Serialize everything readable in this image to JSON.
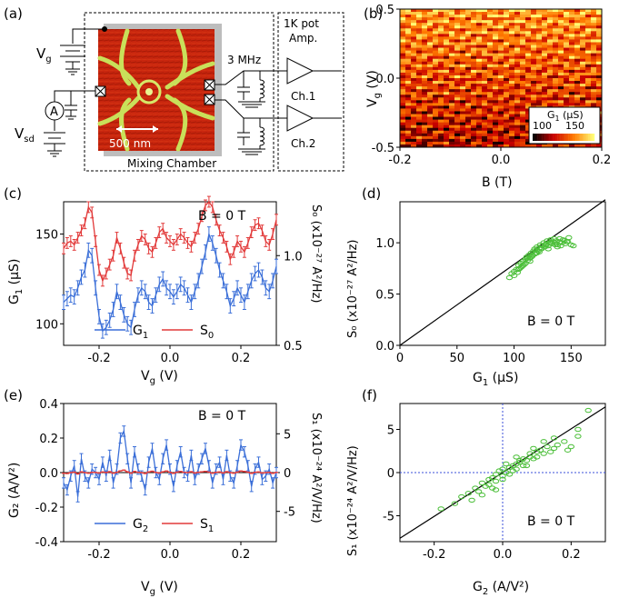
{
  "panel_labels": {
    "a": "(a)",
    "b": "(b)",
    "c": "(c)",
    "d": "(d)",
    "e": "(e)",
    "f": "(f)"
  },
  "panel_a": {
    "vg_label": "V",
    "vg_sub": "g",
    "vsd_label": "V",
    "vsd_sub": "sd",
    "ammeter": "A",
    "scale_bar": "500 nm",
    "mixing_chamber": "Mixing Chamber",
    "freq": "3 MHz",
    "pot_line1": "1K pot",
    "pot_line2": "Amp.",
    "ch1": "Ch.1",
    "ch2": "Ch.2"
  },
  "chart_data": [
    {
      "id": "b",
      "type": "heatmap",
      "xlabel": "B (T)",
      "ylabel_main": "V",
      "ylabel_sub": "g",
      "ylabel_unit": " (V)",
      "xlim": [
        -0.2,
        0.2
      ],
      "ylim": [
        -0.5,
        0.5
      ],
      "xticks": [
        "-0.2",
        "0.0",
        "0.2"
      ],
      "yticks": [
        "0.5",
        "0.0",
        "-0.5"
      ],
      "colorbar": {
        "label_main": "G",
        "label_sub": "1",
        "label_unit": " (µS)",
        "ticks": [
          "100",
          "150"
        ],
        "range": [
          90,
          160
        ]
      }
    },
    {
      "id": "c",
      "type": "line",
      "annotation": "B = 0 T",
      "xlabel_main": "V",
      "xlabel_sub": "g",
      "xlabel_unit": " (V)",
      "ylabel_main": "G",
      "ylabel_sub": "1",
      "ylabel_unit": " (µS)",
      "y2label": "S₀ (x10⁻²⁷ A²/Hz)",
      "xlim": [
        -0.3,
        0.3
      ],
      "ylim": [
        88,
        168
      ],
      "y2lim": [
        0.5,
        1.3
      ],
      "xticks": [
        "-0.2",
        "0.0",
        "0.2"
      ],
      "yticks": [
        "100",
        "150"
      ],
      "y2ticks": [
        "0.5",
        "1.0"
      ],
      "legend": [
        {
          "name_main": "G",
          "name_sub": "1",
          "color": "#3b6fd8"
        },
        {
          "name_main": "S",
          "name_sub": "0",
          "color": "#e23a3a"
        }
      ],
      "x": [
        -0.3,
        -0.29,
        -0.28,
        -0.27,
        -0.26,
        -0.25,
        -0.24,
        -0.23,
        -0.22,
        -0.21,
        -0.2,
        -0.19,
        -0.18,
        -0.17,
        -0.16,
        -0.15,
        -0.14,
        -0.13,
        -0.12,
        -0.11,
        -0.1,
        -0.09,
        -0.08,
        -0.07,
        -0.06,
        -0.05,
        -0.04,
        -0.03,
        -0.02,
        -0.01,
        0.0,
        0.01,
        0.02,
        0.03,
        0.04,
        0.05,
        0.06,
        0.07,
        0.08,
        0.09,
        0.1,
        0.11,
        0.12,
        0.13,
        0.14,
        0.15,
        0.16,
        0.17,
        0.18,
        0.19,
        0.2,
        0.21,
        0.22,
        0.23,
        0.24,
        0.25,
        0.26,
        0.27,
        0.28,
        0.29,
        0.3
      ],
      "series": [
        {
          "name": "G1",
          "color": "#3b6fd8",
          "values": [
            112,
            114,
            116,
            115,
            120,
            126,
            130,
            141,
            138,
            120,
            104,
            96,
            98,
            102,
            108,
            118,
            112,
            105,
            100,
            98,
            108,
            116,
            120,
            118,
            112,
            110,
            116,
            122,
            125,
            120,
            118,
            115,
            118,
            122,
            120,
            116,
            112,
            118,
            124,
            132,
            140,
            150,
            145,
            138,
            130,
            124,
            118,
            110,
            114,
            120,
            116,
            112,
            118,
            124,
            128,
            130,
            126,
            120,
            118,
            124,
            132
          ],
          "err": 4
        },
        {
          "name": "S0",
          "color": "#e23a3a",
          "values": [
            1.04,
            1.07,
            1.08,
            1.06,
            1.1,
            1.14,
            1.18,
            1.27,
            1.24,
            1.08,
            0.92,
            0.86,
            0.9,
            0.95,
            1.0,
            1.1,
            1.04,
            0.96,
            0.9,
            0.89,
            1.0,
            1.06,
            1.11,
            1.09,
            1.04,
            1.02,
            1.07,
            1.13,
            1.15,
            1.1,
            1.08,
            1.06,
            1.09,
            1.12,
            1.1,
            1.07,
            1.05,
            1.1,
            1.15,
            1.22,
            1.28,
            1.3,
            1.27,
            1.2,
            1.14,
            1.1,
            1.05,
            0.98,
            1.02,
            1.08,
            1.05,
            1.02,
            1.07,
            1.13,
            1.17,
            1.18,
            1.14,
            1.08,
            1.06,
            1.12,
            1.2
          ],
          "err": 0.03
        }
      ]
    },
    {
      "id": "d",
      "type": "scatter",
      "annotation": "B = 0 T",
      "xlabel_main": "G",
      "xlabel_sub": "1",
      "xlabel_unit": " (µS)",
      "ylabel": "S₀ (x10⁻²⁷ A²/Hz)",
      "xlim": [
        0,
        180
      ],
      "ylim": [
        0,
        1.4
      ],
      "xticks": [
        "0",
        "50",
        "100",
        "150"
      ],
      "yticks": [
        "0.0",
        "0.5",
        "1.0"
      ],
      "fit_line": {
        "x": [
          0,
          180
        ],
        "y": [
          0,
          1.42
        ]
      },
      "points_x": [
        96,
        98,
        100,
        102,
        103,
        104,
        105,
        106,
        107,
        108,
        109,
        110,
        110,
        111,
        112,
        113,
        114,
        115,
        115,
        116,
        117,
        118,
        118,
        119,
        120,
        120,
        121,
        122,
        123,
        124,
        125,
        126,
        127,
        128,
        129,
        130,
        131,
        132,
        133,
        134,
        135,
        136,
        137,
        138,
        140,
        141,
        142,
        143,
        145,
        147,
        150,
        152,
        100,
        104,
        108,
        112,
        116,
        120,
        124,
        128,
        132,
        136,
        140,
        144,
        148,
        106,
        114,
        122,
        130,
        138,
        146
      ],
      "points_y": [
        0.66,
        0.7,
        0.72,
        0.74,
        0.71,
        0.78,
        0.75,
        0.8,
        0.77,
        0.82,
        0.79,
        0.84,
        0.8,
        0.86,
        0.83,
        0.88,
        0.85,
        0.9,
        0.86,
        0.88,
        0.92,
        0.89,
        0.94,
        0.9,
        0.93,
        0.96,
        0.92,
        0.95,
        0.98,
        0.94,
        0.97,
        1.0,
        0.96,
        0.99,
        1.02,
        0.97,
        1.0,
        1.03,
        0.99,
        1.01,
        1.04,
        1.0,
        1.02,
        0.98,
        1.01,
        0.97,
        1.0,
        1.03,
        0.99,
        1.01,
        0.98,
        0.97,
        0.68,
        0.74,
        0.78,
        0.85,
        0.87,
        0.9,
        0.95,
        0.98,
        1.0,
        0.98,
        1.04,
        1.02,
        1.05,
        0.76,
        0.82,
        0.91,
        0.94,
        0.96,
        1.01
      ]
    },
    {
      "id": "e",
      "type": "line",
      "annotation": "B = 0 T",
      "xlabel_main": "V",
      "xlabel_sub": "g",
      "xlabel_unit": " (V)",
      "ylabel": "G₂ (A/V²)",
      "y2label": "S₁ (x10⁻²⁴ A²/V/Hz)",
      "xlim": [
        -0.3,
        0.3
      ],
      "ylim": [
        -0.4,
        0.4
      ],
      "y2lim": [
        -8.9,
        8.9
      ],
      "xticks": [
        "-0.2",
        "0.0",
        "0.2"
      ],
      "yticks": [
        "0.4",
        "0.2",
        "0.0",
        "-0.2",
        "-0.4"
      ],
      "y2ticks": [
        "5",
        "0",
        "-5"
      ],
      "legend": [
        {
          "name_main": "G",
          "name_sub": "2",
          "color": "#3b6fd8"
        },
        {
          "name_main": "S",
          "name_sub": "1",
          "color": "#e23a3a"
        }
      ],
      "x": [
        -0.3,
        -0.29,
        -0.28,
        -0.27,
        -0.26,
        -0.25,
        -0.24,
        -0.23,
        -0.22,
        -0.21,
        -0.2,
        -0.19,
        -0.18,
        -0.17,
        -0.16,
        -0.15,
        -0.14,
        -0.13,
        -0.12,
        -0.11,
        -0.1,
        -0.09,
        -0.08,
        -0.07,
        -0.06,
        -0.05,
        -0.04,
        -0.03,
        -0.02,
        -0.01,
        0.0,
        0.01,
        0.02,
        0.03,
        0.04,
        0.05,
        0.06,
        0.07,
        0.08,
        0.09,
        0.1,
        0.11,
        0.12,
        0.13,
        0.14,
        0.15,
        0.16,
        0.17,
        0.18,
        0.19,
        0.2,
        0.21,
        0.22,
        0.23,
        0.24,
        0.25,
        0.26,
        0.27,
        0.28,
        0.29,
        0.3
      ],
      "series": [
        {
          "name": "G2",
          "color": "#3b6fd8",
          "values": [
            -0.06,
            -0.1,
            -0.02,
            0.04,
            -0.14,
            0.08,
            -0.02,
            -0.06,
            0.02,
            0.0,
            -0.04,
            0.06,
            -0.02,
            0.1,
            -0.06,
            0.02,
            0.2,
            0.24,
            0.08,
            -0.06,
            0.12,
            0.02,
            -0.02,
            -0.1,
            0.06,
            0.14,
            0.0,
            -0.04,
            0.08,
            0.16,
            0.02,
            -0.08,
            0.04,
            0.12,
            0.0,
            -0.02,
            0.1,
            -0.04,
            0.02,
            0.08,
            0.14,
            0.04,
            -0.06,
            0.02,
            0.06,
            -0.04,
            0.1,
            -0.02,
            -0.06,
            0.04,
            0.16,
            0.12,
            0.04,
            -0.08,
            0.02,
            0.06,
            -0.04,
            -0.02,
            0.02,
            -0.06,
            0.0
          ],
          "err": 0.03
        },
        {
          "name": "S1",
          "color": "#e23a3a",
          "values": [
            -0.08,
            -0.12,
            0.0,
            0.06,
            -0.18,
            0.1,
            0.0,
            -0.08,
            0.04,
            0.02,
            -0.06,
            0.08,
            0.0,
            0.12,
            -0.08,
            0.04,
            0.22,
            0.32,
            0.1,
            -0.08,
            0.14,
            0.04,
            0.0,
            -0.12,
            0.08,
            0.18,
            0.02,
            -0.06,
            0.1,
            0.2,
            0.04,
            -0.1,
            0.06,
            0.14,
            0.02,
            0.0,
            0.12,
            -0.06,
            0.04,
            0.1,
            0.16,
            0.06,
            -0.08,
            0.04,
            0.08,
            -0.06,
            0.12,
            0.0,
            -0.08,
            0.06,
            0.2,
            0.14,
            0.06,
            -0.1,
            0.04,
            0.08,
            -0.06,
            0.0,
            0.04,
            -0.1,
            0.02
          ],
          "err": 0.02
        }
      ]
    },
    {
      "id": "f",
      "type": "scatter",
      "annotation": "B = 0 T",
      "xlabel_main": "G",
      "xlabel_sub": "2",
      "xlabel_unit": " (A/V²)",
      "ylabel": "S₁ (x10⁻²⁴ A²/V/Hz)",
      "xlim": [
        -0.3,
        0.3
      ],
      "ylim": [
        -8,
        8
      ],
      "xticks": [
        "-0.2",
        "0.0",
        "0.2"
      ],
      "yticks": [
        "5",
        "0",
        "-5"
      ],
      "fit_line": {
        "x": [
          -0.3,
          0.3
        ],
        "y": [
          -7.6,
          7.6
        ]
      },
      "points_x": [
        -0.18,
        -0.14,
        -0.12,
        -0.1,
        -0.08,
        -0.07,
        -0.06,
        -0.05,
        -0.04,
        -0.04,
        -0.03,
        -0.02,
        -0.02,
        -0.01,
        0.0,
        0.0,
        0.01,
        0.02,
        0.02,
        0.03,
        0.04,
        0.04,
        0.05,
        0.06,
        0.06,
        0.07,
        0.08,
        0.08,
        0.09,
        0.1,
        0.1,
        0.11,
        0.12,
        0.13,
        0.14,
        0.15,
        0.16,
        0.18,
        0.2,
        0.22,
        0.25,
        -0.09,
        -0.06,
        -0.03,
        0.0,
        0.03,
        0.05,
        0.07,
        0.09,
        0.12,
        0.15,
        0.19,
        0.22,
        -0.02,
        0.01,
        0.04
      ],
      "points_y": [
        -4.2,
        -3.6,
        -2.8,
        -2.4,
        -1.8,
        -2.2,
        -1.2,
        -1.6,
        -0.8,
        -1.4,
        -0.6,
        -0.2,
        -1.0,
        0.2,
        -0.4,
        0.4,
        0.0,
        0.6,
        -0.2,
        0.8,
        1.0,
        0.4,
        1.2,
        1.6,
        0.8,
        1.4,
        1.8,
        2.2,
        1.6,
        2.4,
        1.8,
        2.6,
        2.2,
        3.0,
        2.4,
        2.8,
        3.2,
        3.6,
        3.0,
        4.2,
        7.2,
        -3.2,
        -2.6,
        -1.8,
        -0.8,
        0.2,
        1.4,
        0.8,
        2.8,
        3.6,
        4.0,
        2.6,
        5.0,
        -2.0,
        1.0,
        1.8
      ]
    }
  ]
}
